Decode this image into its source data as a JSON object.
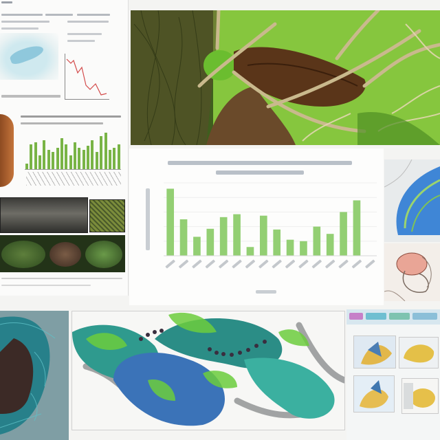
{
  "document_panel": {
    "header_text": "",
    "bar_plot_values": [
      0.15,
      0.65,
      0.7,
      0.35,
      0.75,
      0.5,
      0.45,
      0.55,
      0.8,
      0.65,
      0.35,
      0.7,
      0.55,
      0.5,
      0.6,
      0.75,
      0.45,
      0.85,
      0.95,
      0.5,
      0.55,
      0.65
    ]
  },
  "illustration": {
    "subject": "leaf-vein-illustration",
    "accent": "#7ec13c"
  },
  "chart_data": {
    "type": "bar",
    "title": "",
    "xlabel": "",
    "ylabel": "",
    "categories": [
      "",
      "",
      "",
      "",
      "",
      "",
      "",
      "",
      "",
      "",
      "",
      "",
      "",
      "",
      "",
      ""
    ],
    "values": [
      92,
      50,
      26,
      37,
      53,
      57,
      12,
      55,
      36,
      22,
      20,
      40,
      30,
      60,
      76,
      0
    ],
    "ylim": [
      0,
      100
    ],
    "grid": true,
    "bar_color": "#93cf73"
  },
  "thumbnails": {
    "butterfly": "butterfly-wing-illustration",
    "heart": "anatomy-sketch"
  },
  "bottom": {
    "left_texture": "scale-texture",
    "coil": "coiled-green-organism-illustration",
    "materials_panel": "materials-ui-thumbnails"
  }
}
